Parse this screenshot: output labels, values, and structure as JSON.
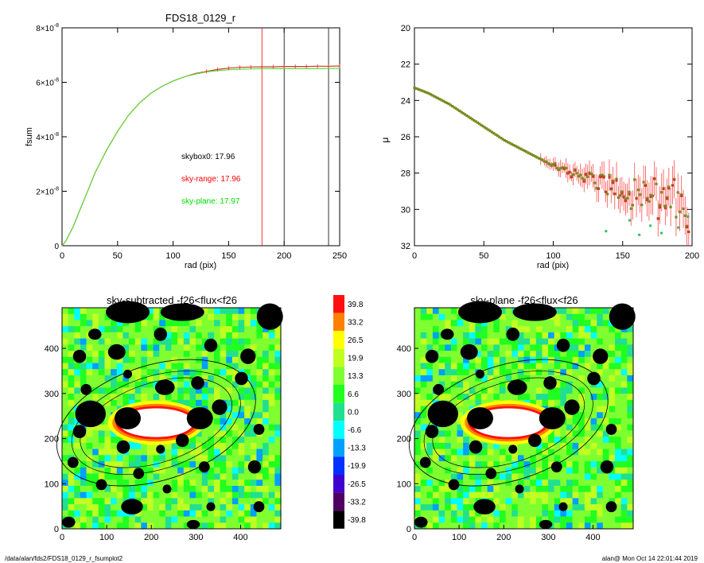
{
  "chart_data": [
    {
      "type": "line",
      "title": "FDS18_0129_r",
      "xlabel": "rad (pix)",
      "ylabel": "fsum",
      "xlim": [
        0,
        250
      ],
      "ylim": [
        0,
        8e-08
      ],
      "x_ticks": [
        "0",
        "50",
        "100",
        "150",
        "200",
        "250"
      ],
      "y_ticks": [
        {
          "value": 0,
          "mant": "0",
          "exp": ""
        },
        {
          "value": 2e-08,
          "mant": "2×10",
          "exp": "-8"
        },
        {
          "value": 4e-08,
          "mant": "4×10",
          "exp": "-8"
        },
        {
          "value": 6e-08,
          "mant": "6×10",
          "exp": "-8"
        },
        {
          "value": 8e-08,
          "mant": "8×10",
          "exp": "-8"
        }
      ],
      "vlines": [
        {
          "x": 180,
          "color": "#ff0000"
        },
        {
          "x": 200,
          "color": "#000000"
        },
        {
          "x": 240,
          "color": "#000000"
        }
      ],
      "annotations": [
        {
          "text": "skybox0: 17.96",
          "color": "#000000"
        },
        {
          "text": "sky-range: 17.96",
          "color": "#ff0000"
        },
        {
          "text": "sky-plane: 17.97",
          "color": "#00dd00"
        }
      ],
      "series": [
        {
          "color": "#c04020",
          "x": [
            0,
            3,
            5,
            10,
            15,
            20,
            25,
            30,
            40,
            50,
            60,
            70,
            80,
            90,
            100,
            110,
            120,
            130,
            140,
            150,
            160,
            170,
            180,
            190,
            200,
            210,
            220,
            230,
            240,
            250
          ],
          "y": [
            0,
            1.5e-09,
            3e-09,
            7e-09,
            1.2e-08,
            1.7e-08,
            2.2e-08,
            2.7e-08,
            3.5e-08,
            4.2e-08,
            4.8e-08,
            5.25e-08,
            5.6e-08,
            5.85e-08,
            6.05e-08,
            6.2e-08,
            6.32e-08,
            6.4e-08,
            6.47e-08,
            6.52e-08,
            6.55e-08,
            6.56e-08,
            6.57e-08,
            6.57e-08,
            6.58e-08,
            6.58e-08,
            6.58e-08,
            6.59e-08,
            6.59e-08,
            6.6e-08
          ]
        },
        {
          "color": "#60dd40",
          "x": [
            0,
            3,
            5,
            10,
            15,
            20,
            25,
            30,
            40,
            50,
            60,
            70,
            80,
            90,
            100,
            110,
            120,
            130,
            140,
            150,
            160,
            170,
            180,
            190,
            200,
            210,
            220,
            230,
            240,
            250
          ],
          "y": [
            0,
            1.5e-09,
            3e-09,
            7e-09,
            1.2e-08,
            1.7e-08,
            2.2e-08,
            2.7e-08,
            3.5e-08,
            4.2e-08,
            4.8e-08,
            5.25e-08,
            5.6e-08,
            5.85e-08,
            6.05e-08,
            6.2e-08,
            6.3e-08,
            6.38e-08,
            6.43e-08,
            6.46e-08,
            6.48e-08,
            6.49e-08,
            6.5e-08,
            6.5e-08,
            6.5e-08,
            6.5e-08,
            6.5e-08,
            6.5e-08,
            6.51e-08,
            6.51e-08
          ]
        }
      ]
    },
    {
      "type": "scatter",
      "title": "",
      "xlabel": "rad (pix)",
      "ylabel": "μ",
      "xlim": [
        0,
        200
      ],
      "ylim": [
        32,
        20
      ],
      "x_ticks": [
        "0",
        "50",
        "100",
        "150",
        "200"
      ],
      "y_ticks": [
        "20",
        "22",
        "24",
        "26",
        "28",
        "30",
        "32"
      ],
      "series": [
        {
          "color": "#8a7a20",
          "x": [
            0,
            5,
            10,
            15,
            20,
            25,
            30,
            35,
            40,
            45,
            50,
            55,
            60,
            65,
            70,
            75,
            80,
            85,
            90,
            95,
            100,
            105,
            110,
            115,
            120,
            125,
            130,
            135,
            140,
            145,
            150,
            155,
            160,
            165,
            170,
            175,
            180,
            185,
            190,
            195
          ],
          "y": [
            23.3,
            23.45,
            23.6,
            23.8,
            24.0,
            24.2,
            24.45,
            24.7,
            24.95,
            25.2,
            25.45,
            25.7,
            25.95,
            26.2,
            26.4,
            26.6,
            26.8,
            27.0,
            27.2,
            27.4,
            27.55,
            27.7,
            27.85,
            28.0,
            28.15,
            28.3,
            28.45,
            28.4,
            28.7,
            28.9,
            28.6,
            29.2,
            28.9,
            29.4,
            28.8,
            29.6,
            29.0,
            29.8,
            29.2,
            30.0
          ]
        }
      ]
    },
    {
      "type": "heatmap",
      "title": "sky-subtracted -f26<flux<f26",
      "xlim": [
        0,
        490
      ],
      "ylim": [
        0,
        490
      ],
      "x_ticks": [
        "0",
        "100",
        "200",
        "300",
        "400"
      ],
      "y_ticks": [
        "0",
        "100",
        "200",
        "300",
        "400"
      ]
    },
    {
      "type": "heatmap",
      "title": "sky-plane -f26<flux<f26",
      "xlim": [
        0,
        490
      ],
      "ylim": [
        0,
        490
      ],
      "x_ticks": [
        "0",
        "100",
        "200",
        "300",
        "400"
      ],
      "y_ticks": [
        "0",
        "100",
        "200",
        "300",
        "400"
      ]
    }
  ],
  "colorbar": {
    "levels": [
      "39.8",
      "33.2",
      "26.5",
      "19.9",
      "13.3",
      "6.6",
      "0.0",
      "-6.6",
      "-13.3",
      "-19.9",
      "-26.5",
      "-33.2",
      "-39.8"
    ],
    "colors": [
      "#ff1010",
      "#ff8000",
      "#ffff00",
      "#c0ff20",
      "#80ff30",
      "#20ff20",
      "#20e090",
      "#00ffff",
      "#00a0ff",
      "#0030ff",
      "#4000d0",
      "#500060",
      "#000000"
    ]
  },
  "footer": {
    "left": "/data/alan/fds2/FDS18_0129_r_fsumplot2",
    "right": "alan@  Mon Oct 14 22:01:44 2019"
  }
}
